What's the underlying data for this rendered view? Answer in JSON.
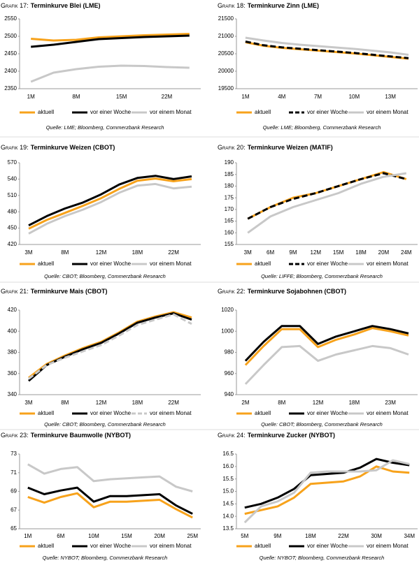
{
  "chart_data": [
    {
      "type": "line",
      "label": "Grafik 17:",
      "title": "Terminkurve Blei (LME)",
      "source": "Quelle: LME; Bloomberg, Commerzbank Research",
      "categories": [
        "1M",
        null,
        "8M",
        null,
        "15M",
        null,
        "22M",
        null
      ],
      "ylim": [
        2350,
        2550
      ],
      "yticks": [
        2350,
        2400,
        2450,
        2500,
        2550
      ],
      "series": [
        {
          "name": "aktuell",
          "color": "#f7a21b",
          "dash": false,
          "values": [
            2493,
            2488,
            2490,
            2497,
            2500,
            2503,
            2505,
            2507
          ]
        },
        {
          "name": "vor einer Woche",
          "color": "#000000",
          "dash": false,
          "values": [
            2470,
            2476,
            2484,
            2492,
            2495,
            2498,
            2500,
            2502
          ]
        },
        {
          "name": "vor einem Monat",
          "color": "#c8c8c8",
          "dash": false,
          "values": [
            2370,
            2396,
            2406,
            2413,
            2416,
            2415,
            2412,
            2410
          ]
        }
      ]
    },
    {
      "type": "line",
      "label": "Grafik 18:",
      "title": "Terminkurve Zinn (LME)",
      "source": "Quelle: LME; Bloomberg, Commerzbank Research",
      "categories": [
        "1M",
        null,
        "4M",
        null,
        "7M",
        null,
        "10M",
        null,
        "13M",
        null
      ],
      "ylim": [
        19500,
        21500
      ],
      "yticks": [
        19500,
        20000,
        20500,
        21000,
        21500
      ],
      "series": [
        {
          "name": "aktuell",
          "color": "#f7a21b",
          "dash": false,
          "values": [
            20830,
            20730,
            20670,
            20630,
            20590,
            20550,
            20510,
            20460,
            20410,
            20360
          ]
        },
        {
          "name": "vor einer Woche",
          "color": "#000000",
          "dash": true,
          "values": [
            20850,
            20745,
            20685,
            20645,
            20605,
            20565,
            20525,
            20475,
            20425,
            20375
          ]
        },
        {
          "name": "vor einem Monat",
          "color": "#c8c8c8",
          "dash": false,
          "values": [
            20960,
            20880,
            20810,
            20760,
            20720,
            20680,
            20640,
            20590,
            20540,
            20470
          ]
        }
      ]
    },
    {
      "type": "line",
      "label": "Grafik 19:",
      "title": "Terminkurve Weizen (CBOT)",
      "source": "Quelle: CBOT; Bloomberg, Commerzbank Research",
      "categories": [
        "3M",
        null,
        "8M",
        null,
        "12M",
        null,
        "18M",
        null,
        "22M",
        null
      ],
      "ylim": [
        420,
        570
      ],
      "yticks": [
        420,
        450,
        480,
        510,
        540,
        570
      ],
      "series": [
        {
          "name": "aktuell",
          "color": "#f7a21b",
          "dash": false,
          "values": [
            449,
            465,
            478,
            491,
            505,
            522,
            537,
            541,
            536,
            540
          ]
        },
        {
          "name": "vor einer Woche",
          "color": "#000000",
          "dash": false,
          "values": [
            455,
            472,
            486,
            497,
            512,
            530,
            542,
            546,
            540,
            545
          ]
        },
        {
          "name": "vor einem Monat",
          "color": "#c8c8c8",
          "dash": false,
          "values": [
            440,
            458,
            472,
            484,
            498,
            515,
            528,
            531,
            523,
            526
          ]
        }
      ]
    },
    {
      "type": "line",
      "label": "Grafik 20:",
      "title": "Terminkurve Weizen (MATIF)",
      "source": "Quelle: LIFFE; Bloomberg, Commerzbank Research",
      "categories": [
        "3M",
        "6M",
        "9M",
        "12M",
        "15M",
        "18M",
        "20M",
        "24M"
      ],
      "ylim": [
        155,
        190
      ],
      "yticks": [
        155,
        160,
        165,
        170,
        175,
        180,
        185,
        190
      ],
      "series": [
        {
          "name": "aktuell",
          "color": "#f7a21b",
          "dash": false,
          "values": [
            166,
            171,
            175,
            177,
            180,
            183,
            186,
            183
          ]
        },
        {
          "name": "vor einer Woche",
          "color": "#000000",
          "dash": true,
          "values": [
            166,
            171,
            174.5,
            177,
            180,
            183,
            185.5,
            183
          ]
        },
        {
          "name": "vor einem Monat",
          "color": "#c8c8c8",
          "dash": false,
          "values": [
            160,
            167,
            171,
            174,
            177,
            181,
            184,
            185.5
          ]
        }
      ]
    },
    {
      "type": "line",
      "label": "Grafik 21:",
      "title": "Terminkurve Mais (CBOT)",
      "source": "Quelle: CBOT; Bloomberg, Commerzbank Research",
      "categories": [
        "3M",
        null,
        "8M",
        null,
        "12M",
        null,
        "18M",
        null,
        "22M",
        null
      ],
      "ylim": [
        340,
        420
      ],
      "yticks": [
        340,
        360,
        380,
        400,
        420
      ],
      "series": [
        {
          "name": "aktuell",
          "color": "#f7a21b",
          "dash": false,
          "values": [
            356,
            369,
            377,
            384,
            390,
            399,
            409,
            414,
            418,
            413
          ]
        },
        {
          "name": "vor einer Woche",
          "color": "#000000",
          "dash": false,
          "values": [
            353,
            368,
            376,
            383,
            389,
            398,
            408,
            413,
            417,
            411
          ]
        },
        {
          "name": "vor einem Monat",
          "color": "#c8c8c8",
          "dash": true,
          "values": [
            355,
            368,
            375,
            381,
            387,
            396,
            406,
            411,
            416,
            407
          ]
        }
      ]
    },
    {
      "type": "line",
      "label": "Grafik 22:",
      "title": "Terminkurve Sojabohnen (CBOT)",
      "source": "Quelle: CBOT; Bloomberg, Commerzbank Research",
      "categories": [
        "2M",
        null,
        "8M",
        null,
        "12M",
        null,
        "18M",
        null,
        "23M",
        null
      ],
      "ylim": [
        940,
        1020
      ],
      "yticks": [
        940,
        960,
        980,
        1000,
        1020
      ],
      "series": [
        {
          "name": "aktuell",
          "color": "#f7a21b",
          "dash": false,
          "values": [
            968,
            986,
            1002,
            1002,
            985,
            992,
            997,
            1003,
            1000,
            996
          ]
        },
        {
          "name": "vor einer Woche",
          "color": "#000000",
          "dash": false,
          "values": [
            972,
            990,
            1005,
            1005,
            988,
            995,
            1000,
            1005,
            1002,
            998
          ]
        },
        {
          "name": "vor einem Monat",
          "color": "#c8c8c8",
          "dash": false,
          "values": [
            950,
            968,
            985,
            986,
            972,
            978,
            982,
            986,
            984,
            978
          ]
        }
      ]
    },
    {
      "type": "line",
      "label": "Grafik 23:",
      "title": "Terminkurve Baumwolle (NYBOT)",
      "source": "Quelle: NYBOT; Bloomberg, Commerzbank Research",
      "categories": [
        "1M",
        null,
        "6M",
        null,
        "10M",
        null,
        "15M",
        null,
        "20M",
        null,
        "25M"
      ],
      "ylim": [
        65,
        73
      ],
      "yticks": [
        65,
        67,
        69,
        71,
        73
      ],
      "series": [
        {
          "name": "aktuell",
          "color": "#f7a21b",
          "dash": false,
          "values": [
            68.4,
            67.8,
            68.4,
            68.8,
            67.3,
            67.9,
            67.9,
            68.0,
            68.1,
            67.1,
            66.2
          ]
        },
        {
          "name": "vor einer Woche",
          "color": "#000000",
          "dash": false,
          "values": [
            69.4,
            68.7,
            69.1,
            69.4,
            67.9,
            68.5,
            68.5,
            68.6,
            68.7,
            67.5,
            66.6
          ]
        },
        {
          "name": "vor einem Monat",
          "color": "#c8c8c8",
          "dash": false,
          "values": [
            71.9,
            70.9,
            71.4,
            71.6,
            70.1,
            70.3,
            70.4,
            70.5,
            70.6,
            69.5,
            69.0
          ]
        }
      ]
    },
    {
      "type": "line",
      "label": "Grafik 24:",
      "title": "Terminkurve Zucker (NYBOT)",
      "source": "Quelle: NYBOT; Bloomberg, Commerzbank Research",
      "categories": [
        "5M",
        null,
        "9M",
        null,
        "18M",
        null,
        "22M",
        null,
        "30M",
        null,
        "34M"
      ],
      "ylim": [
        13.5,
        16.5
      ],
      "yticks": [
        13.5,
        {
          "value": 14,
          "label": "14.0"
        },
        14.5,
        {
          "value": 15,
          "label": "15.0"
        },
        15.5,
        {
          "value": 16,
          "label": "16.0"
        },
        16.5
      ],
      "series": [
        {
          "name": "aktuell",
          "color": "#f7a21b",
          "dash": false,
          "values": [
            14.1,
            14.25,
            14.4,
            14.75,
            15.3,
            15.35,
            15.4,
            15.6,
            16.0,
            15.8,
            15.75
          ]
        },
        {
          "name": "vor einer Woche",
          "color": "#000000",
          "dash": false,
          "values": [
            14.35,
            14.5,
            14.75,
            15.1,
            15.65,
            15.7,
            15.75,
            15.95,
            16.3,
            16.15,
            16.05
          ]
        },
        {
          "name": "vor einem Monat",
          "color": "#c8c8c8",
          "dash": false,
          "values": [
            13.75,
            14.4,
            14.6,
            14.95,
            15.75,
            15.8,
            15.8,
            15.8,
            15.85,
            16.25,
            16.1
          ]
        }
      ]
    }
  ]
}
